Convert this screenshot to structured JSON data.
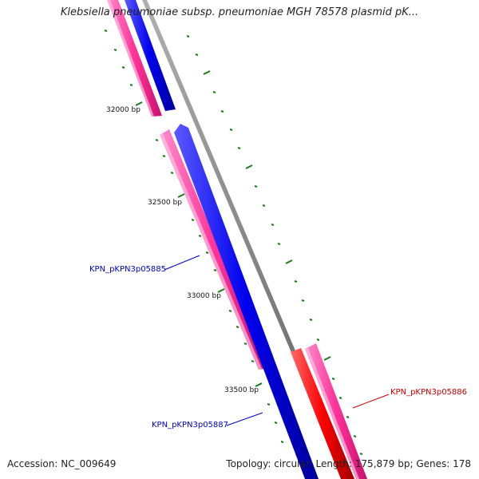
{
  "title": "Klebsiella pneumoniae subsp. pneumoniae MGH 78578 plasmid pK...",
  "footer": {
    "accession": "Accession: NC_009649",
    "summary": "Topology: circular; Length: 175,879 bp; Genes: 178"
  },
  "scale_labels": [
    "32000 bp",
    "32500 bp",
    "33000 bp",
    "33500 bp"
  ],
  "gene_labels": [
    {
      "text": "KPN_pKPN3p05885",
      "color": "#0000cc"
    },
    {
      "text": "KPN_pKPN3p05886",
      "color": "#cc0000"
    },
    {
      "text": "KPN_pKPN3p05887",
      "color": "#0000cc"
    }
  ],
  "colors": {
    "backbone": "#888888",
    "pink_gene": "#ff3399",
    "blue_gene": "#0000ee",
    "red_gene": "#ff0000",
    "ticks": "#1a7a1a"
  }
}
